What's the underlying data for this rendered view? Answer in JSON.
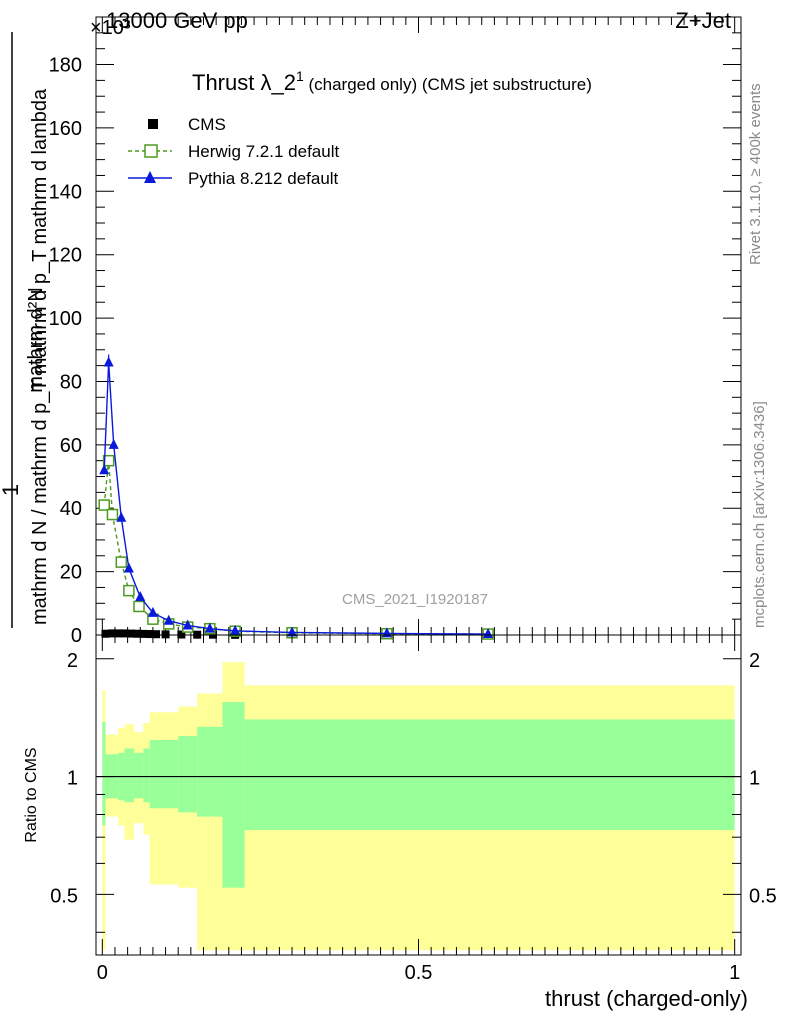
{
  "header": {
    "energy": "13000 GeV pp",
    "process": "Z+Jet",
    "multiplier": "×10³"
  },
  "side_labels": {
    "rivet": "Rivet 3.1.10, ≥ 400k events",
    "mcplots": "mcplots.cern.ch [arXiv:1306.3436]"
  },
  "analysis_id": "CMS_2021_I1920187",
  "chart_data": [
    {
      "type": "line",
      "title": "Thrust λ_2¹ (charged only) (CMS jet substructure)",
      "title_main": "Thrust λ_2",
      "title_sup": "1",
      "title_rest": " (charged only) (CMS jet substructure)",
      "ylabel_numerator": "mathrm d²N",
      "ylabel_denominator": "mathrm d N / mathrm d p_T mathrm d p_T mathrm d lambda",
      "ylabel_one": "1",
      "ylim": [
        0,
        195
      ],
      "xlim": [
        -0.01,
        1.01
      ],
      "yticks": [
        0,
        20,
        40,
        60,
        80,
        100,
        120,
        140,
        160,
        180
      ],
      "legend_position": "top-left",
      "series": [
        {
          "name": "CMS",
          "color": "#000000",
          "marker": "square",
          "x": [
            0.005,
            0.015,
            0.025,
            0.035,
            0.045,
            0.055,
            0.065,
            0.075,
            0.085,
            0.1,
            0.125,
            0.15,
            0.175,
            0.21,
            0.61
          ],
          "values": [
            0.4,
            0.5,
            0.5,
            0.5,
            0.45,
            0.4,
            0.35,
            0.3,
            0.25,
            0.2,
            0.15,
            0.1,
            0.1,
            0.05,
            0.01
          ]
        },
        {
          "name": "Herwig 7.2.1 default",
          "color": "#4d9a1e",
          "marker": "open-square",
          "dashed": true,
          "x": [
            0.003,
            0.01,
            0.016,
            0.03,
            0.042,
            0.058,
            0.08,
            0.105,
            0.135,
            0.17,
            0.21,
            0.3,
            0.45,
            0.61
          ],
          "values": [
            41,
            55,
            38,
            23,
            14,
            9,
            5,
            3.5,
            2.5,
            2,
            1.2,
            0.7,
            0.4,
            0.3
          ]
        },
        {
          "name": "Pythia 8.212 default",
          "color": "#0a1adb",
          "marker": "triangle",
          "dashed": false,
          "x": [
            0.003,
            0.01,
            0.018,
            0.03,
            0.042,
            0.06,
            0.08,
            0.105,
            0.135,
            0.17,
            0.21,
            0.3,
            0.45,
            0.61
          ],
          "values": [
            52,
            86,
            60,
            37,
            21,
            12,
            7,
            4.5,
            3,
            2,
            1.3,
            0.8,
            0.5,
            0.3
          ]
        }
      ]
    },
    {
      "type": "area",
      "ylabel": "Ratio to CMS",
      "xlabel": "thrust (charged-only)",
      "ylim": [
        0.35,
        2.3
      ],
      "xlim": [
        -0.01,
        1.01
      ],
      "xticks": [
        "0",
        "0.5",
        "1"
      ],
      "yticks": [
        "0.5",
        "1",
        "2"
      ],
      "band_colors": {
        "outer": "#ffff99",
        "inner": "#99ff99"
      },
      "bins": [
        {
          "x0": 0.0,
          "x1": 0.005,
          "outer": [
            0.36,
            1.66
          ],
          "inner": [
            0.75,
            1.38
          ]
        },
        {
          "x0": 0.005,
          "x1": 0.025,
          "outer": [
            0.79,
            1.28
          ],
          "inner": [
            0.88,
            1.14
          ]
        },
        {
          "x0": 0.025,
          "x1": 0.035,
          "outer": [
            0.75,
            1.33
          ],
          "inner": [
            0.87,
            1.15
          ]
        },
        {
          "x0": 0.035,
          "x1": 0.05,
          "outer": [
            0.69,
            1.36
          ],
          "inner": [
            0.86,
            1.18
          ]
        },
        {
          "x0": 0.05,
          "x1": 0.065,
          "outer": [
            0.76,
            1.3
          ],
          "inner": [
            0.88,
            1.15
          ]
        },
        {
          "x0": 0.065,
          "x1": 0.075,
          "outer": [
            0.71,
            1.37
          ],
          "inner": [
            0.86,
            1.18
          ]
        },
        {
          "x0": 0.075,
          "x1": 0.12,
          "outer": [
            0.53,
            1.46
          ],
          "inner": [
            0.83,
            1.24
          ]
        },
        {
          "x0": 0.12,
          "x1": 0.15,
          "outer": [
            0.52,
            1.51
          ],
          "inner": [
            0.81,
            1.27
          ]
        },
        {
          "x0": 0.15,
          "x1": 0.19,
          "outer": [
            0.36,
            1.63
          ],
          "inner": [
            0.79,
            1.34
          ]
        },
        {
          "x0": 0.19,
          "x1": 0.225,
          "outer": [
            0.36,
            1.96
          ],
          "inner": [
            0.52,
            1.55
          ]
        },
        {
          "x0": 0.225,
          "x1": 1.0,
          "outer": [
            0.36,
            1.71
          ],
          "inner": [
            0.73,
            1.4
          ]
        }
      ]
    }
  ]
}
